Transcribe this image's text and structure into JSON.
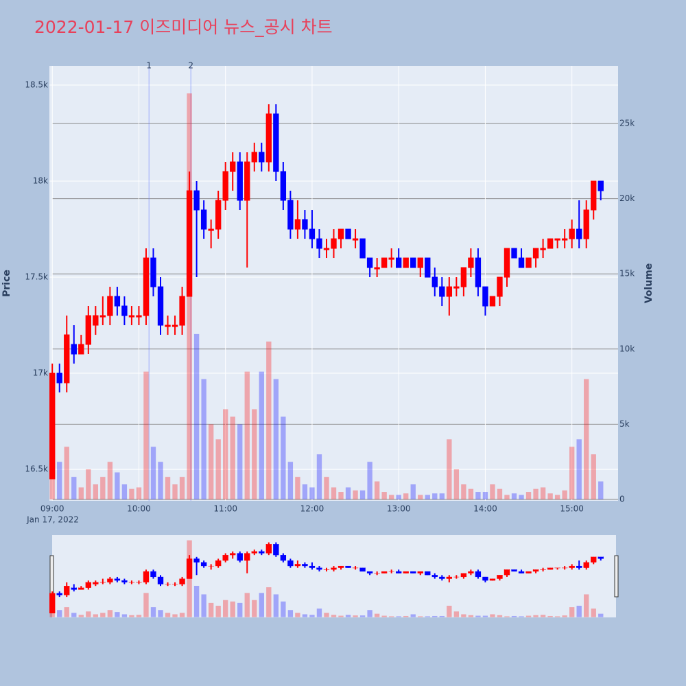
{
  "chart_data": {
    "type": "candlestick",
    "title": "2022-01-17 이즈미디어 뉴스_공시 차트",
    "y_label": "Price",
    "y2_label": "Volume",
    "x_date_label": "Jan 17, 2022",
    "increasing_color": "#ff0000",
    "decreasing_color": "#0000ff",
    "x": [
      "09:00",
      "09:05",
      "09:10",
      "09:15",
      "09:20",
      "09:25",
      "09:30",
      "09:35",
      "09:40",
      "09:45",
      "09:50",
      "09:55",
      "10:00",
      "10:05",
      "10:10",
      "10:15",
      "10:20",
      "10:25",
      "10:30",
      "10:35",
      "10:40",
      "10:45",
      "10:50",
      "10:55",
      "11:00",
      "11:05",
      "11:10",
      "11:15",
      "11:20",
      "11:25",
      "11:30",
      "11:35",
      "11:40",
      "11:45",
      "11:50",
      "11:55",
      "12:00",
      "12:05",
      "12:10",
      "12:15",
      "12:20",
      "12:25",
      "12:30",
      "12:35",
      "12:40",
      "12:45",
      "12:50",
      "12:55",
      "13:00",
      "13:05",
      "13:10",
      "13:15",
      "13:20",
      "13:25",
      "13:30",
      "13:35",
      "13:40",
      "13:45",
      "13:50",
      "13:55",
      "14:00",
      "14:05",
      "14:10",
      "14:15",
      "14:20",
      "14:25",
      "14:30",
      "14:35",
      "14:40",
      "14:45",
      "14:50",
      "14:55",
      "15:00",
      "15:05",
      "15:10",
      "15:15",
      "15:20"
    ],
    "open": [
      16450,
      17000,
      16950,
      17150,
      17100,
      17150,
      17250,
      17300,
      17300,
      17400,
      17350,
      17300,
      17300,
      17300,
      17600,
      17450,
      17250,
      17250,
      17250,
      17400,
      17950,
      17850,
      17750,
      17750,
      17900,
      18050,
      18100,
      17900,
      18100,
      18150,
      18100,
      18350,
      18050,
      17900,
      17750,
      17800,
      17750,
      17700,
      17650,
      17650,
      17700,
      17750,
      17700,
      17700,
      17600,
      17550,
      17550,
      17600,
      17600,
      17550,
      17600,
      17550,
      17600,
      17500,
      17450,
      17400,
      17450,
      17450,
      17550,
      17600,
      17450,
      17350,
      17400,
      17500,
      17650,
      17600,
      17550,
      17600,
      17650,
      17650,
      17700,
      17700,
      17700,
      17750,
      17700,
      17850,
      18000
    ],
    "high": [
      17050,
      17050,
      17300,
      17250,
      17200,
      17350,
      17350,
      17400,
      17450,
      17450,
      17400,
      17350,
      17350,
      17650,
      17650,
      17500,
      17300,
      17300,
      17450,
      18050,
      18000,
      17900,
      17800,
      17950,
      18100,
      18150,
      18150,
      18150,
      18200,
      18200,
      18400,
      18400,
      18100,
      17950,
      17900,
      17850,
      17850,
      17750,
      17700,
      17750,
      17750,
      17750,
      17750,
      17700,
      17600,
      17600,
      17600,
      17650,
      17650,
      17600,
      17600,
      17600,
      17600,
      17550,
      17500,
      17500,
      17500,
      17550,
      17650,
      17650,
      17450,
      17400,
      17500,
      17650,
      17650,
      17650,
      17600,
      17650,
      17700,
      17700,
      17700,
      17750,
      17800,
      17900,
      17900,
      18000,
      18000
    ],
    "low": [
      16450,
      16900,
      16900,
      17050,
      17100,
      17100,
      17200,
      17250,
      17250,
      17300,
      17250,
      17250,
      17250,
      17250,
      17400,
      17200,
      17200,
      17200,
      17200,
      17400,
      17500,
      17700,
      17650,
      17700,
      17850,
      17950,
      17850,
      17550,
      18050,
      18050,
      18050,
      18000,
      17850,
      17700,
      17700,
      17700,
      17650,
      17600,
      17600,
      17600,
      17650,
      17700,
      17650,
      17600,
      17500,
      17500,
      17550,
      17550,
      17550,
      17550,
      17550,
      17500,
      17500,
      17400,
      17350,
      17300,
      17400,
      17400,
      17500,
      17400,
      17300,
      17350,
      17350,
      17450,
      17600,
      17550,
      17550,
      17550,
      17600,
      17650,
      17650,
      17650,
      17650,
      17650,
      17650,
      17800,
      17900
    ],
    "close": [
      17000,
      16950,
      17200,
      17100,
      17150,
      17300,
      17300,
      17300,
      17400,
      17350,
      17300,
      17300,
      17300,
      17600,
      17450,
      17250,
      17250,
      17250,
      17400,
      17950,
      17850,
      17750,
      17750,
      17900,
      18050,
      18100,
      17900,
      18100,
      18150,
      18100,
      18350,
      18050,
      17900,
      17750,
      17800,
      17750,
      17700,
      17650,
      17650,
      17700,
      17750,
      17700,
      17700,
      17600,
      17550,
      17550,
      17600,
      17600,
      17550,
      17600,
      17550,
      17600,
      17500,
      17450,
      17400,
      17450,
      17450,
      17550,
      17600,
      17450,
      17350,
      17400,
      17500,
      17650,
      17600,
      17550,
      17600,
      17650,
      17650,
      17700,
      17700,
      17700,
      17750,
      17700,
      17850,
      18000,
      17950
    ],
    "volume": [
      3000,
      2500,
      3500,
      1500,
      800,
      2000,
      1000,
      1500,
      2500,
      1800,
      1000,
      700,
      800,
      8500,
      3500,
      2500,
      1500,
      1000,
      1500,
      27000,
      11000,
      8000,
      5000,
      4000,
      6000,
      5500,
      5000,
      8500,
      6000,
      8500,
      10500,
      8000,
      5500,
      2500,
      1500,
      1000,
      800,
      3000,
      1500,
      800,
      500,
      800,
      600,
      600,
      2500,
      1200,
      500,
      300,
      300,
      400,
      1000,
      300,
      300,
      400,
      400,
      4000,
      2000,
      1000,
      700,
      500,
      500,
      1000,
      700,
      300,
      400,
      300,
      500,
      700,
      800,
      400,
      300,
      600,
      3500,
      4000,
      8000,
      3000,
      1200
    ],
    "events": [
      {
        "x": "10:07",
        "label": "1"
      },
      {
        "x": "10:36",
        "label": "2"
      }
    ],
    "xlim": [
      "08:58",
      "15:32"
    ],
    "xticks": [
      "09:00",
      "10:00",
      "11:00",
      "12:00",
      "13:00",
      "14:00",
      "15:00"
    ],
    "ylim": [
      16336,
      18600
    ],
    "yticks": [
      {
        "value": 16500,
        "label": "16.5k"
      },
      {
        "value": 17000,
        "label": "17k"
      },
      {
        "value": 17500,
        "label": "17.5k"
      },
      {
        "value": 18000,
        "label": "18k"
      },
      {
        "value": 18500,
        "label": "18.5k"
      }
    ],
    "y2lim": [
      -91,
      28832
    ],
    "y2ticks": [
      0,
      {
        "value": 5000,
        "label": "5k"
      },
      {
        "value": 10000,
        "label": "10k"
      },
      {
        "value": 15000,
        "label": "15k"
      },
      {
        "value": 20000,
        "label": "20k"
      },
      {
        "value": 25000,
        "label": "25k"
      }
    ],
    "grid": true,
    "range_slider": true
  }
}
